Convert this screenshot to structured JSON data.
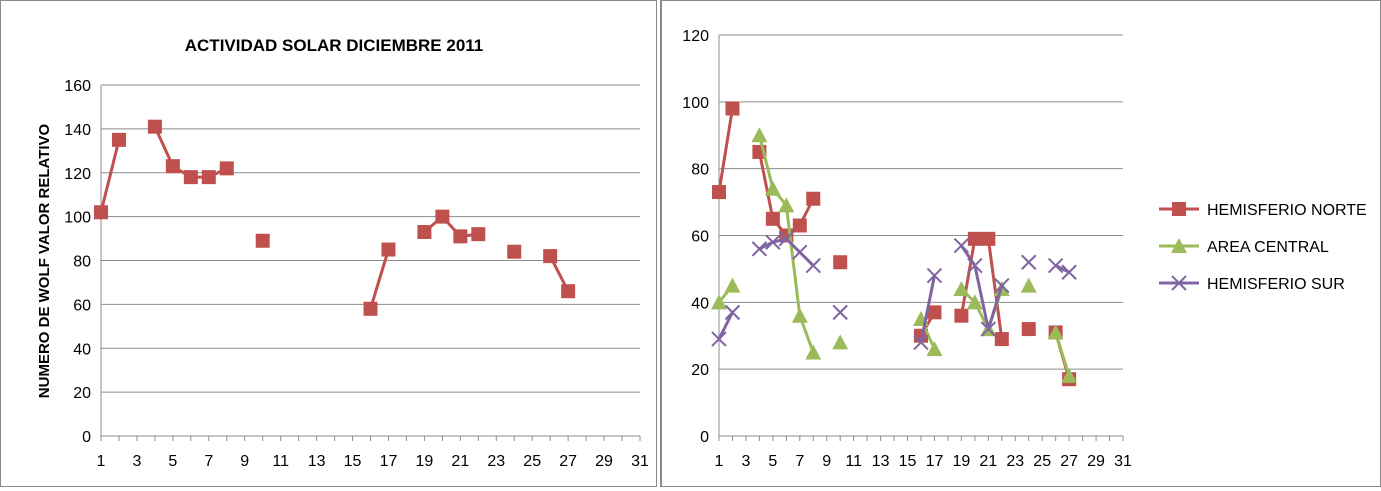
{
  "chart_data": [
    {
      "type": "line",
      "title": "ACTIVIDAD SOLAR  DICIEMBRE 2011",
      "ylabel": "NUMERO DE WOLF VALOR RELATIVO",
      "xlabel": "",
      "ylim": [
        0,
        160
      ],
      "yticks": [
        "0",
        "20",
        "40",
        "60",
        "80",
        "100",
        "120",
        "140",
        "160"
      ],
      "xlim": [
        1,
        31
      ],
      "xticks": [
        "1",
        "3",
        "5",
        "7",
        "9",
        "11",
        "13",
        "15",
        "17",
        "19",
        "21",
        "23",
        "25",
        "27",
        "29",
        "31"
      ],
      "grid": true,
      "legend": "none",
      "series": [
        {
          "color": "#c0504d",
          "marker": "square",
          "points": [
            [
              1,
              102
            ],
            [
              2,
              135
            ],
            [
              4,
              141
            ],
            [
              5,
              123
            ],
            [
              6,
              118
            ],
            [
              7,
              118
            ],
            [
              8,
              122
            ],
            [
              10,
              89
            ],
            [
              16,
              58
            ],
            [
              17,
              85
            ],
            [
              19,
              93
            ],
            [
              20,
              100
            ],
            [
              21,
              91
            ],
            [
              22,
              92
            ],
            [
              24,
              84
            ],
            [
              26,
              82
            ],
            [
              27,
              66
            ]
          ]
        }
      ]
    },
    {
      "type": "line",
      "title": "",
      "ylim": [
        0,
        120
      ],
      "yticks": [
        "0",
        "20",
        "40",
        "60",
        "80",
        "100",
        "120"
      ],
      "xlim": [
        1,
        31
      ],
      "xticks": [
        "1",
        "3",
        "5",
        "7",
        "9",
        "11",
        "13",
        "15",
        "17",
        "19",
        "21",
        "23",
        "25",
        "27",
        "29",
        "31"
      ],
      "grid": true,
      "legend": "right",
      "series": [
        {
          "name": "HEMISFERIO NORTE",
          "color": "#c0504d",
          "marker": "square",
          "points": [
            [
              1,
              73
            ],
            [
              2,
              98
            ],
            [
              4,
              85
            ],
            [
              5,
              65
            ],
            [
              6,
              60
            ],
            [
              7,
              63
            ],
            [
              8,
              71
            ],
            [
              10,
              52
            ],
            [
              16,
              30
            ],
            [
              17,
              37
            ],
            [
              19,
              36
            ],
            [
              20,
              59
            ],
            [
              21,
              59
            ],
            [
              22,
              29
            ],
            [
              24,
              32
            ],
            [
              26,
              31
            ],
            [
              27,
              17
            ]
          ]
        },
        {
          "name": "AREA CENTRAL",
          "color": "#9bbb59",
          "marker": "triangle",
          "points": [
            [
              1,
              40
            ],
            [
              2,
              45
            ],
            [
              4,
              90
            ],
            [
              5,
              74
            ],
            [
              6,
              69
            ],
            [
              7,
              36
            ],
            [
              8,
              25
            ],
            [
              10,
              28
            ],
            [
              16,
              35
            ],
            [
              17,
              26
            ],
            [
              19,
              44
            ],
            [
              20,
              40
            ],
            [
              21,
              32
            ],
            [
              22,
              44
            ],
            [
              24,
              45
            ],
            [
              26,
              31
            ],
            [
              27,
              18
            ]
          ]
        },
        {
          "name": "HEMISFERIO SUR",
          "color": "#8064a2",
          "marker": "x",
          "points": [
            [
              1,
              29
            ],
            [
              2,
              37
            ],
            [
              4,
              56
            ],
            [
              5,
              58
            ],
            [
              6,
              59
            ],
            [
              7,
              55
            ],
            [
              8,
              51
            ],
            [
              10,
              37
            ],
            [
              16,
              28
            ],
            [
              17,
              48
            ],
            [
              19,
              57
            ],
            [
              20,
              51
            ],
            [
              21,
              32
            ],
            [
              22,
              45
            ],
            [
              24,
              52
            ],
            [
              26,
              51
            ],
            [
              27,
              49
            ]
          ]
        }
      ]
    }
  ]
}
